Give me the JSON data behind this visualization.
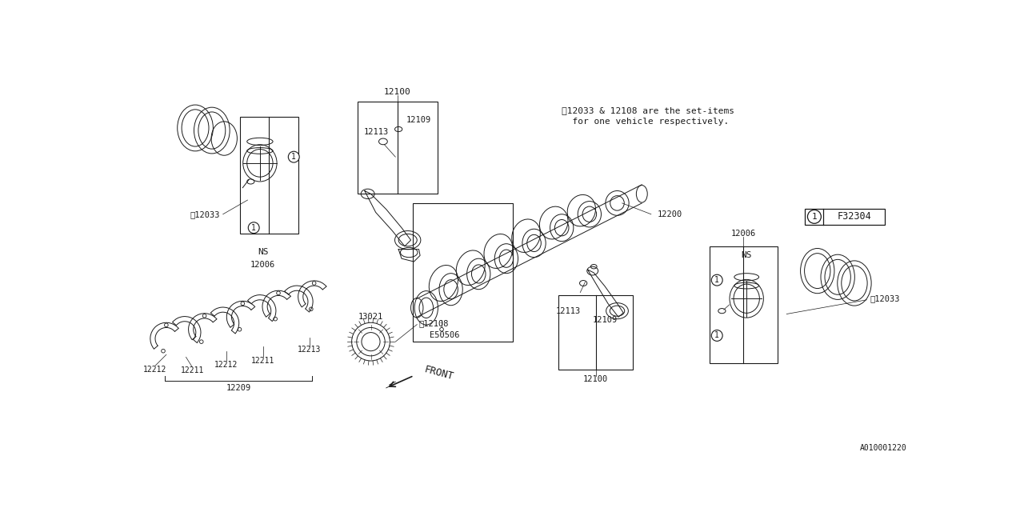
{
  "bg_color": "#ffffff",
  "line_color": "#1a1a1a",
  "note_line1": "※12033 & 12108 are the set-items",
  "note_line2": "  for one vehicle respectively.",
  "diagram_id": "A010001220",
  "ref_code": "F32304",
  "parts": {
    "12033": "※12033",
    "12006": "12006",
    "12100": "12100",
    "12109": "12109",
    "12113": "12113",
    "12200": "12200",
    "12108": "※12108",
    "13021": "13021",
    "12209": "12209",
    "12211": "12211",
    "12212": "12212",
    "12213": "12213",
    "E50506": "E50506",
    "NS": "NS",
    "circle1": "1"
  },
  "font_size_label": 7.5,
  "font_size_note": 8.0,
  "lw_main": 0.7,
  "lw_thin": 0.5
}
